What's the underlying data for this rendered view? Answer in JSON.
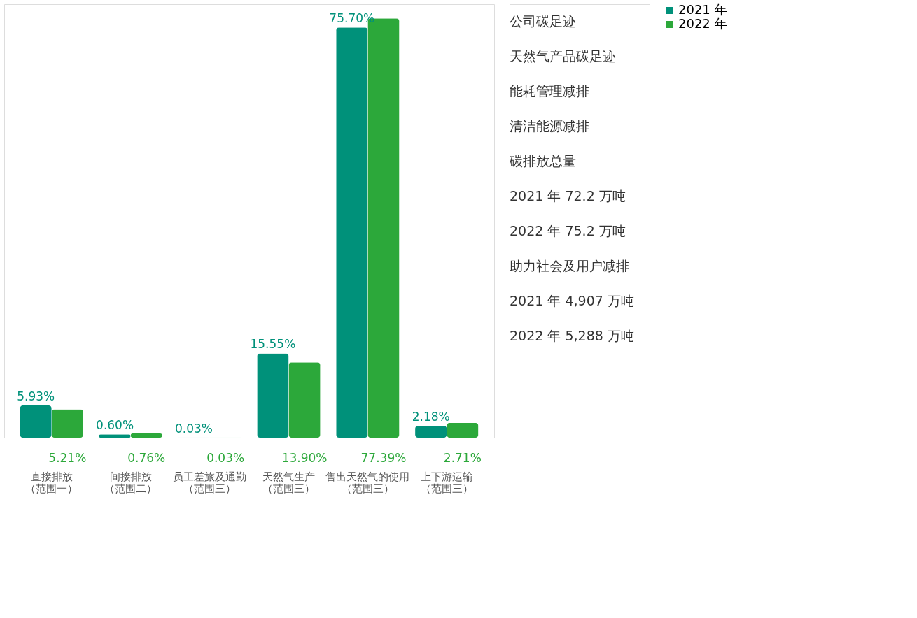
{
  "chart_data": {
    "type": "bar",
    "categories": [
      "直接排放（范围一）",
      "间接排放（范围二）",
      "员工差旅及通勤（范围三）",
      "天然气生产（范围三）",
      "售出天然气的使用（范围三）",
      "上下游运输（范围三）"
    ],
    "series": [
      {
        "name": "2021 年",
        "color": "#00917a",
        "values": [
          5.93,
          0.6,
          0.03,
          15.55,
          75.7,
          2.18
        ],
        "value_labels": [
          "5.93%",
          "0.60%",
          "0.03%",
          "15.55%",
          "75.70%",
          "2.18%"
        ]
      },
      {
        "name": "2022 年",
        "color": "#2ca83a",
        "values": [
          5.21,
          0.76,
          0.03,
          13.9,
          77.39,
          2.71
        ],
        "value_labels": [
          "5.21%",
          "0.76%",
          "0.03%",
          "13.90%",
          "77.39%",
          "2.71%"
        ]
      }
    ],
    "annotations": [
      "公司碳足迹",
      "天然气产品碳足迹",
      "能耗管理减排",
      "清洁能源减排",
      "碳排放总量",
      "2021 年    72.2 万吨",
      "2022 年    75.2 万吨",
      "助力社会及用户减排",
      "2021 年    4,907 万吨",
      "2022 年    5,288 万吨"
    ],
    "legend": "right",
    "grid": false,
    "tick_labels": "x"
  }
}
